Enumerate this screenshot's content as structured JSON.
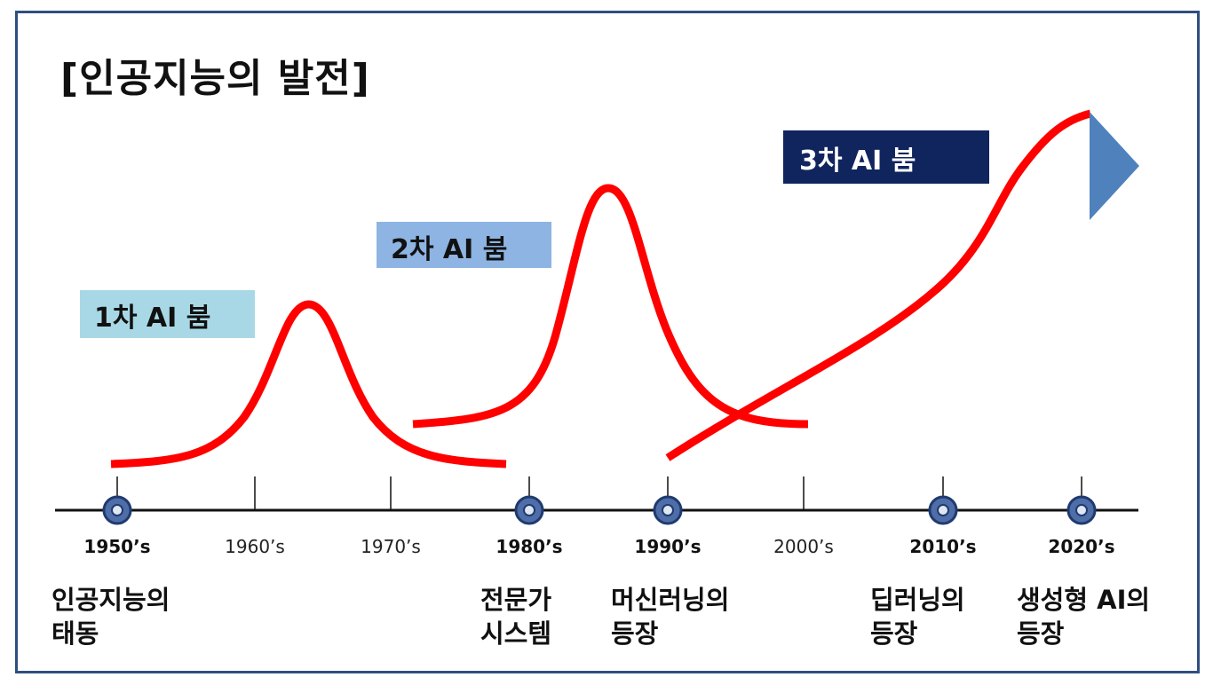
{
  "title": "[인공지능의 발전]",
  "booms": {
    "first": "1차 AI 붐",
    "second": "2차 AI 붐",
    "third": "3차 AI 붐"
  },
  "timeline": {
    "years": [
      {
        "label": "1950’s",
        "milestone": true
      },
      {
        "label": "1960’s",
        "milestone": false
      },
      {
        "label": "1970’s",
        "milestone": false
      },
      {
        "label": "1980’s",
        "milestone": true
      },
      {
        "label": "1990’s",
        "milestone": true
      },
      {
        "label": "2000’s",
        "milestone": false
      },
      {
        "label": "2010’s",
        "milestone": true
      },
      {
        "label": "2020’s",
        "milestone": true
      }
    ]
  },
  "events": [
    {
      "line1": "인공지능의",
      "line2": "태동"
    },
    {
      "line1": "전문가",
      "line2": "시스템"
    },
    {
      "line1": "머신러닝의",
      "line2": "등장"
    },
    {
      "line1": "딥러닝의",
      "line2": "등장"
    },
    {
      "line1": "생성형 AI의",
      "line2": "등장"
    }
  ],
  "colors": {
    "curve": "#ff0000",
    "arrow": "#4f81bd",
    "axis": "#111111",
    "marker_fill": "#4f6ea8",
    "marker_ring": "#1f3a70"
  }
}
